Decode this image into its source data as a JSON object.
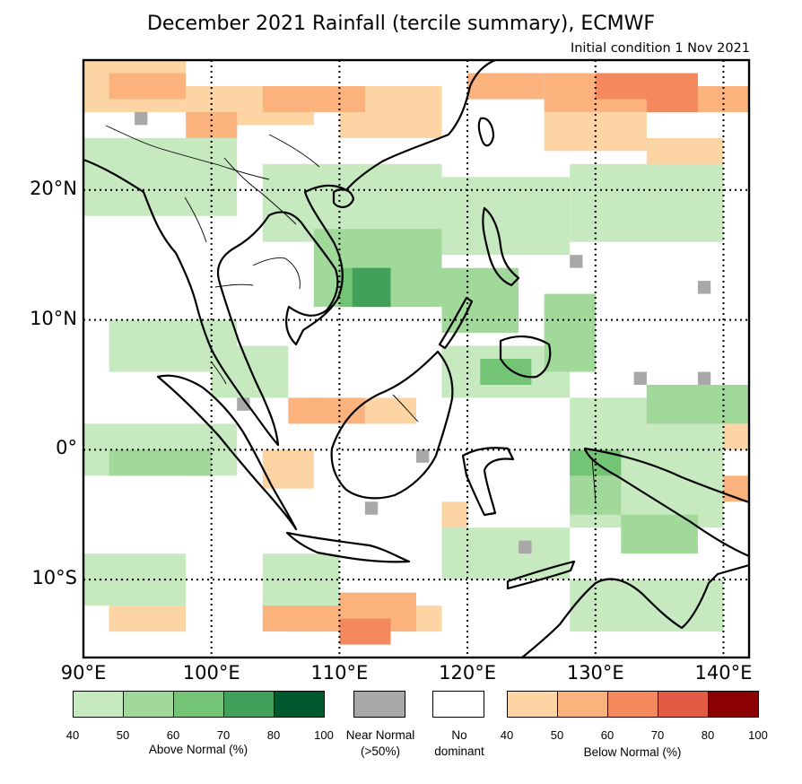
{
  "title": "December 2021 Rainfall (tercile summary), ECMWF",
  "subtitle": "Initial condition 1 Nov 2021",
  "map": {
    "lon_range": [
      90,
      142
    ],
    "lat_range": [
      -16,
      30
    ],
    "lat_ticks": [
      {
        "value": 20,
        "label": "20°N"
      },
      {
        "value": 10,
        "label": "10°N"
      },
      {
        "value": 0,
        "label": "0°"
      },
      {
        "value": -10,
        "label": "10°S"
      }
    ],
    "lon_ticks": [
      {
        "value": 90,
        "label": "90°E"
      },
      {
        "value": 100,
        "label": "100°E"
      },
      {
        "value": 110,
        "label": "110°E"
      },
      {
        "value": 120,
        "label": "120°E"
      },
      {
        "value": 130,
        "label": "130°E"
      },
      {
        "value": 140,
        "label": "140°E"
      }
    ],
    "regions": [
      {
        "category": "below",
        "level": 1,
        "cells": [
          [
            90,
            26,
            8,
            4
          ],
          [
            98,
            25,
            10,
            3
          ],
          [
            110,
            24,
            8,
            4
          ],
          [
            126,
            23,
            8,
            3
          ],
          [
            134,
            22,
            6,
            2
          ],
          [
            90,
            28,
            4,
            2
          ],
          [
            106,
            -14,
            4,
            2
          ],
          [
            114,
            -14,
            4,
            2
          ],
          [
            92,
            -14,
            6,
            2
          ],
          [
            104,
            -3,
            4,
            3
          ],
          [
            98,
            -2,
            2,
            2
          ],
          [
            112,
            2,
            4,
            2
          ],
          [
            118,
            -6,
            2,
            2
          ],
          [
            140,
            0,
            2,
            2
          ]
        ]
      },
      {
        "category": "below",
        "level": 2,
        "cells": [
          [
            92,
            27,
            6,
            2
          ],
          [
            104,
            26,
            8,
            2
          ],
          [
            120,
            27,
            6,
            2
          ],
          [
            126,
            26,
            10,
            3
          ],
          [
            136,
            26,
            6,
            2
          ],
          [
            98,
            24,
            4,
            2
          ],
          [
            104,
            -14,
            12,
            3
          ],
          [
            106,
            2,
            6,
            2
          ],
          [
            138,
            -4,
            4,
            2
          ]
        ]
      },
      {
        "category": "below",
        "level": 3,
        "cells": [
          [
            130,
            27,
            8,
            2
          ],
          [
            134,
            26,
            4,
            2
          ],
          [
            110,
            -15,
            4,
            2
          ]
        ]
      },
      {
        "category": "above",
        "level": 1,
        "cells": [
          [
            90,
            18,
            12,
            6
          ],
          [
            104,
            16,
            14,
            6
          ],
          [
            118,
            15,
            10,
            6
          ],
          [
            128,
            16,
            12,
            6
          ],
          [
            92,
            6,
            10,
            4
          ],
          [
            100,
            4,
            6,
            4
          ],
          [
            118,
            4,
            10,
            4
          ],
          [
            128,
            -6,
            12,
            10
          ],
          [
            90,
            -2,
            12,
            4
          ],
          [
            90,
            -12,
            8,
            4
          ],
          [
            104,
            -12,
            6,
            4
          ],
          [
            118,
            -10,
            10,
            4
          ],
          [
            128,
            -14,
            12,
            4
          ]
        ]
      },
      {
        "category": "above",
        "level": 2,
        "cells": [
          [
            108,
            11,
            10,
            6
          ],
          [
            118,
            9,
            6,
            5
          ],
          [
            126,
            6,
            4,
            6
          ],
          [
            134,
            2,
            8,
            3
          ],
          [
            92,
            -2,
            8,
            2
          ],
          [
            128,
            -5,
            4,
            3
          ],
          [
            132,
            -8,
            6,
            3
          ]
        ]
      },
      {
        "category": "above",
        "level": 3,
        "cells": [
          [
            110,
            11,
            4,
            3
          ],
          [
            121,
            5,
            4,
            2
          ],
          [
            128,
            -2,
            4,
            2
          ]
        ]
      },
      {
        "category": "above",
        "level": 4,
        "cells": [
          [
            111,
            11,
            3,
            3
          ]
        ]
      },
      {
        "category": "near",
        "level": 1,
        "cells": [
          [
            94,
            25,
            1,
            1
          ],
          [
            128,
            14,
            1,
            1
          ],
          [
            138,
            12,
            1,
            1
          ],
          [
            102,
            3,
            1,
            1
          ],
          [
            133,
            5,
            1,
            1
          ],
          [
            138,
            5,
            1,
            1
          ],
          [
            116,
            -1,
            1,
            1
          ],
          [
            124,
            -8,
            1,
            1
          ],
          [
            112,
            -5,
            1,
            1
          ]
        ]
      }
    ]
  },
  "legend": {
    "above": {
      "caption": "Above Normal (%)",
      "colors": [
        "#c7e9c0",
        "#a1d99b",
        "#74c476",
        "#41a05a",
        "#00582f"
      ],
      "ticks": [
        "40",
        "50",
        "60",
        "70",
        "80",
        "100"
      ]
    },
    "near": {
      "caption_line1": "Near Normal",
      "caption_line2": "(>50%)",
      "color": "#a8a8a8"
    },
    "none": {
      "caption_line1": "No",
      "caption_line2": "dominant",
      "color": "#ffffff"
    },
    "below": {
      "caption": "Below Normal (%)",
      "colors": [
        "#fdd4a4",
        "#fcb27c",
        "#f4895d",
        "#e25b42",
        "#8b0000"
      ],
      "ticks": [
        "40",
        "50",
        "60",
        "70",
        "80",
        "100"
      ]
    }
  }
}
